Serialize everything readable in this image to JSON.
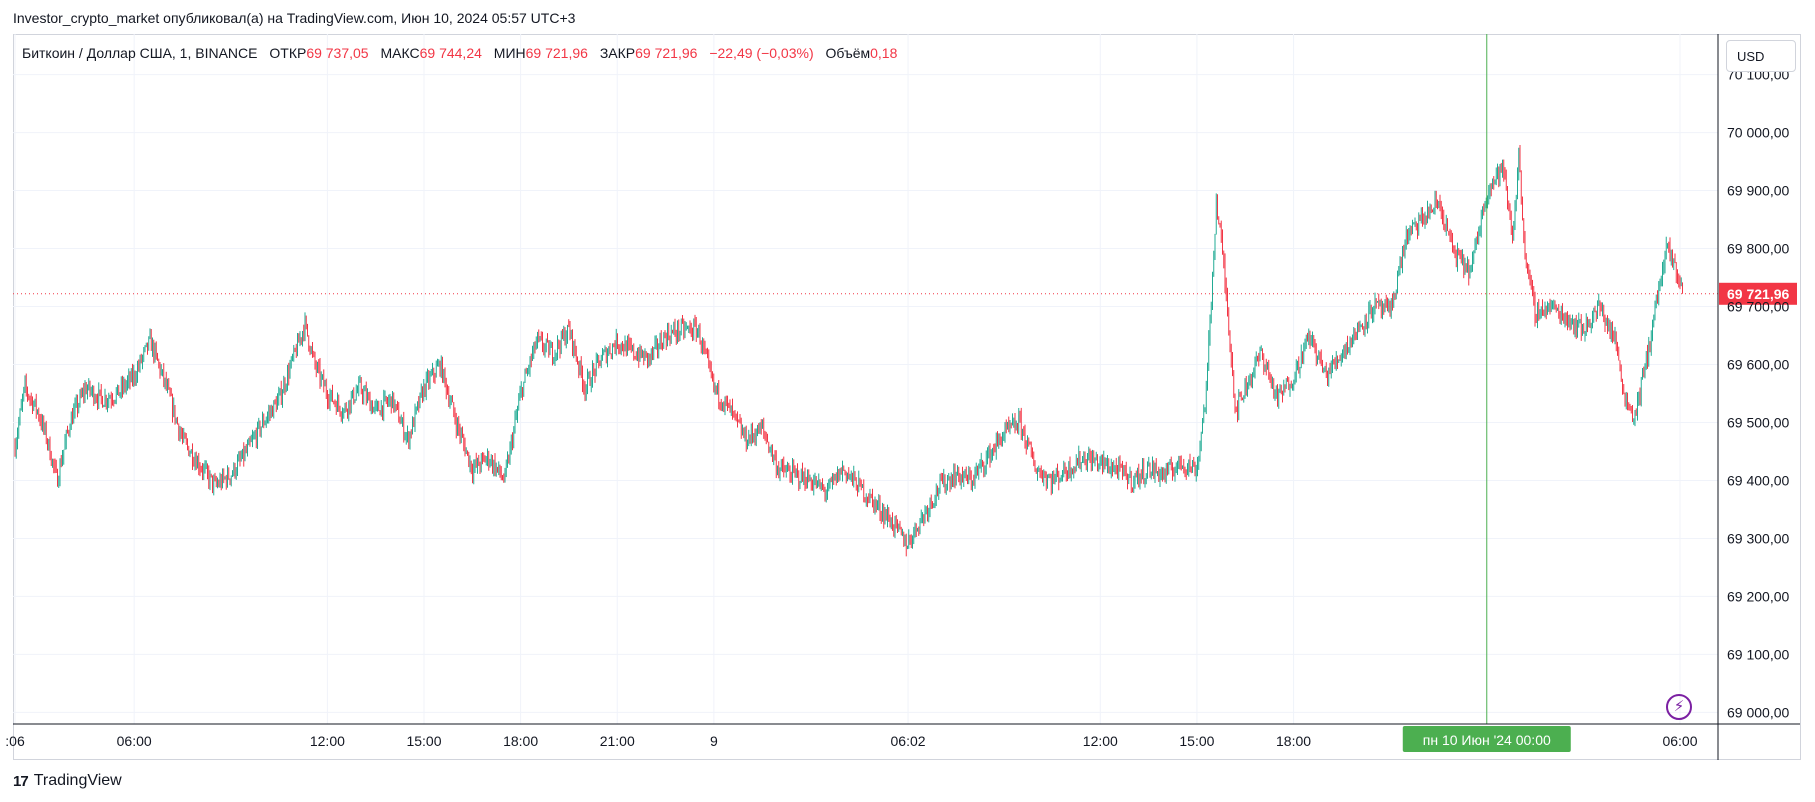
{
  "attribution": "Investor_crypto_market опубликовал(а) на TradingView.com, Июн 10, 2024 05:57 UTC+3",
  "legend": {
    "symbol": "Биткоин / Доллар США, 1, BINANCE",
    "open_label": "ОТКР",
    "open": "69 737,05",
    "high_label": "МАКС",
    "high": "69 744,24",
    "low_label": "МИН",
    "low": "69 721,96",
    "close_label": "ЗАКР",
    "close": "69 721,96",
    "change": "−22,49 (−0,03%)",
    "volume_label": "Объём",
    "volume": "0,18"
  },
  "currency": "USD",
  "brand": "TradingView",
  "brand_logo": "17",
  "colors": {
    "up": "#22ab94",
    "down": "#f23645",
    "grid": "#f0f3fa",
    "crosshair": "#4caf50",
    "price_line": "#f23645",
    "time_badge": "#4caf50"
  },
  "chart_data": {
    "type": "candlestick",
    "symbol": "BTCUSD",
    "interval": "1",
    "ylim": [
      68980,
      70170
    ],
    "y_ticks": [
      {
        "value": 70100,
        "label": "70 100,00"
      },
      {
        "value": 70000,
        "label": "70 000,00"
      },
      {
        "value": 69900,
        "label": "69 900,00"
      },
      {
        "value": 69800,
        "label": "69 800,00"
      },
      {
        "value": 69700,
        "label": "69 700,00"
      },
      {
        "value": 69600,
        "label": "69 600,00"
      },
      {
        "value": 69500,
        "label": "69 500,00"
      },
      {
        "value": 69400,
        "label": "69 400,00"
      },
      {
        "value": 69300,
        "label": "69 300,00"
      },
      {
        "value": 69200,
        "label": "69 200,00"
      },
      {
        "value": 69100,
        "label": "69 100,00"
      },
      {
        "value": 69000,
        "label": "69 000,00"
      }
    ],
    "x_ticks": [
      {
        "hour": 2.3,
        "label": ":06"
      },
      {
        "hour": 6,
        "label": "06:00"
      },
      {
        "hour": 12,
        "label": "12:00"
      },
      {
        "hour": 15,
        "label": "15:00"
      },
      {
        "hour": 18,
        "label": "18:00"
      },
      {
        "hour": 21,
        "label": "21:00"
      },
      {
        "hour": 24,
        "label": "9"
      },
      {
        "hour": 30.03,
        "label": "06:02"
      },
      {
        "hour": 36,
        "label": "12:00"
      },
      {
        "hour": 39,
        "label": "15:00"
      },
      {
        "hour": 42,
        "label": "18:00"
      },
      {
        "hour": 54,
        "label": "06:00"
      }
    ],
    "x_range_hours": [
      2.3,
      54
    ],
    "last_price": {
      "value": 69721.96,
      "label": "69 721,96"
    },
    "crosshair": {
      "hour": 48,
      "label": "пн 10 Июн '24   00:00"
    },
    "price_path": [
      [
        2.3,
        69460
      ],
      [
        2.6,
        69560
      ],
      [
        3.0,
        69520
      ],
      [
        3.3,
        69470
      ],
      [
        3.6,
        69400
      ],
      [
        4.0,
        69500
      ],
      [
        4.5,
        69560
      ],
      [
        5.0,
        69540
      ],
      [
        5.5,
        69550
      ],
      [
        6.0,
        69580
      ],
      [
        6.5,
        69640
      ],
      [
        7.0,
        69560
      ],
      [
        7.5,
        69470
      ],
      [
        8.0,
        69430
      ],
      [
        8.5,
        69390
      ],
      [
        9.0,
        69410
      ],
      [
        9.5,
        69450
      ],
      [
        10.0,
        69500
      ],
      [
        10.5,
        69540
      ],
      [
        11.0,
        69620
      ],
      [
        11.3,
        69670
      ],
      [
        11.6,
        69600
      ],
      [
        12.0,
        69550
      ],
      [
        12.5,
        69520
      ],
      [
        13.0,
        69560
      ],
      [
        13.5,
        69520
      ],
      [
        14.0,
        69540
      ],
      [
        14.5,
        69470
      ],
      [
        15.0,
        69560
      ],
      [
        15.5,
        69600
      ],
      [
        16.0,
        69500
      ],
      [
        16.5,
        69420
      ],
      [
        17.0,
        69440
      ],
      [
        17.5,
        69400
      ],
      [
        18.0,
        69550
      ],
      [
        18.5,
        69640
      ],
      [
        19.0,
        69620
      ],
      [
        19.5,
        69660
      ],
      [
        20.0,
        69560
      ],
      [
        20.5,
        69610
      ],
      [
        21.0,
        69640
      ],
      [
        21.5,
        69620
      ],
      [
        22.0,
        69610
      ],
      [
        22.5,
        69650
      ],
      [
        23.0,
        69660
      ],
      [
        23.5,
        69660
      ],
      [
        24.0,
        69560
      ],
      [
        24.5,
        69520
      ],
      [
        25.0,
        69470
      ],
      [
        25.5,
        69490
      ],
      [
        26.0,
        69420
      ],
      [
        26.5,
        69410
      ],
      [
        27.0,
        69400
      ],
      [
        27.5,
        69380
      ],
      [
        28.0,
        69420
      ],
      [
        28.5,
        69390
      ],
      [
        29.0,
        69360
      ],
      [
        29.5,
        69330
      ],
      [
        30.0,
        69290
      ],
      [
        30.5,
        69340
      ],
      [
        31.0,
        69390
      ],
      [
        31.5,
        69410
      ],
      [
        32.0,
        69400
      ],
      [
        32.5,
        69440
      ],
      [
        33.0,
        69480
      ],
      [
        33.5,
        69500
      ],
      [
        34.0,
        69420
      ],
      [
        34.5,
        69400
      ],
      [
        35.0,
        69420
      ],
      [
        35.5,
        69440
      ],
      [
        36.0,
        69430
      ],
      [
        36.5,
        69420
      ],
      [
        37.0,
        69400
      ],
      [
        37.5,
        69420
      ],
      [
        38.0,
        69410
      ],
      [
        38.5,
        69430
      ],
      [
        39.0,
        69420
      ],
      [
        39.3,
        69560
      ],
      [
        39.6,
        69880
      ],
      [
        39.8,
        69790
      ],
      [
        40.0,
        69660
      ],
      [
        40.2,
        69520
      ],
      [
        40.5,
        69560
      ],
      [
        41.0,
        69620
      ],
      [
        41.5,
        69540
      ],
      [
        42.0,
        69580
      ],
      [
        42.5,
        69650
      ],
      [
        43.0,
        69580
      ],
      [
        43.5,
        69620
      ],
      [
        44.0,
        69660
      ],
      [
        44.5,
        69700
      ],
      [
        45.0,
        69690
      ],
      [
        45.5,
        69820
      ],
      [
        46.0,
        69850
      ],
      [
        46.5,
        69880
      ],
      [
        47.0,
        69790
      ],
      [
        47.5,
        69760
      ],
      [
        48.0,
        69900
      ],
      [
        48.5,
        69940
      ],
      [
        48.8,
        69820
      ],
      [
        49.0,
        69960
      ],
      [
        49.2,
        69780
      ],
      [
        49.5,
        69690
      ],
      [
        50.0,
        69700
      ],
      [
        50.5,
        69680
      ],
      [
        51.0,
        69660
      ],
      [
        51.5,
        69700
      ],
      [
        52.0,
        69640
      ],
      [
        52.3,
        69540
      ],
      [
        52.6,
        69510
      ],
      [
        53.0,
        69620
      ],
      [
        53.3,
        69720
      ],
      [
        53.6,
        69800
      ],
      [
        53.9,
        69760
      ],
      [
        54.1,
        69722
      ]
    ]
  }
}
